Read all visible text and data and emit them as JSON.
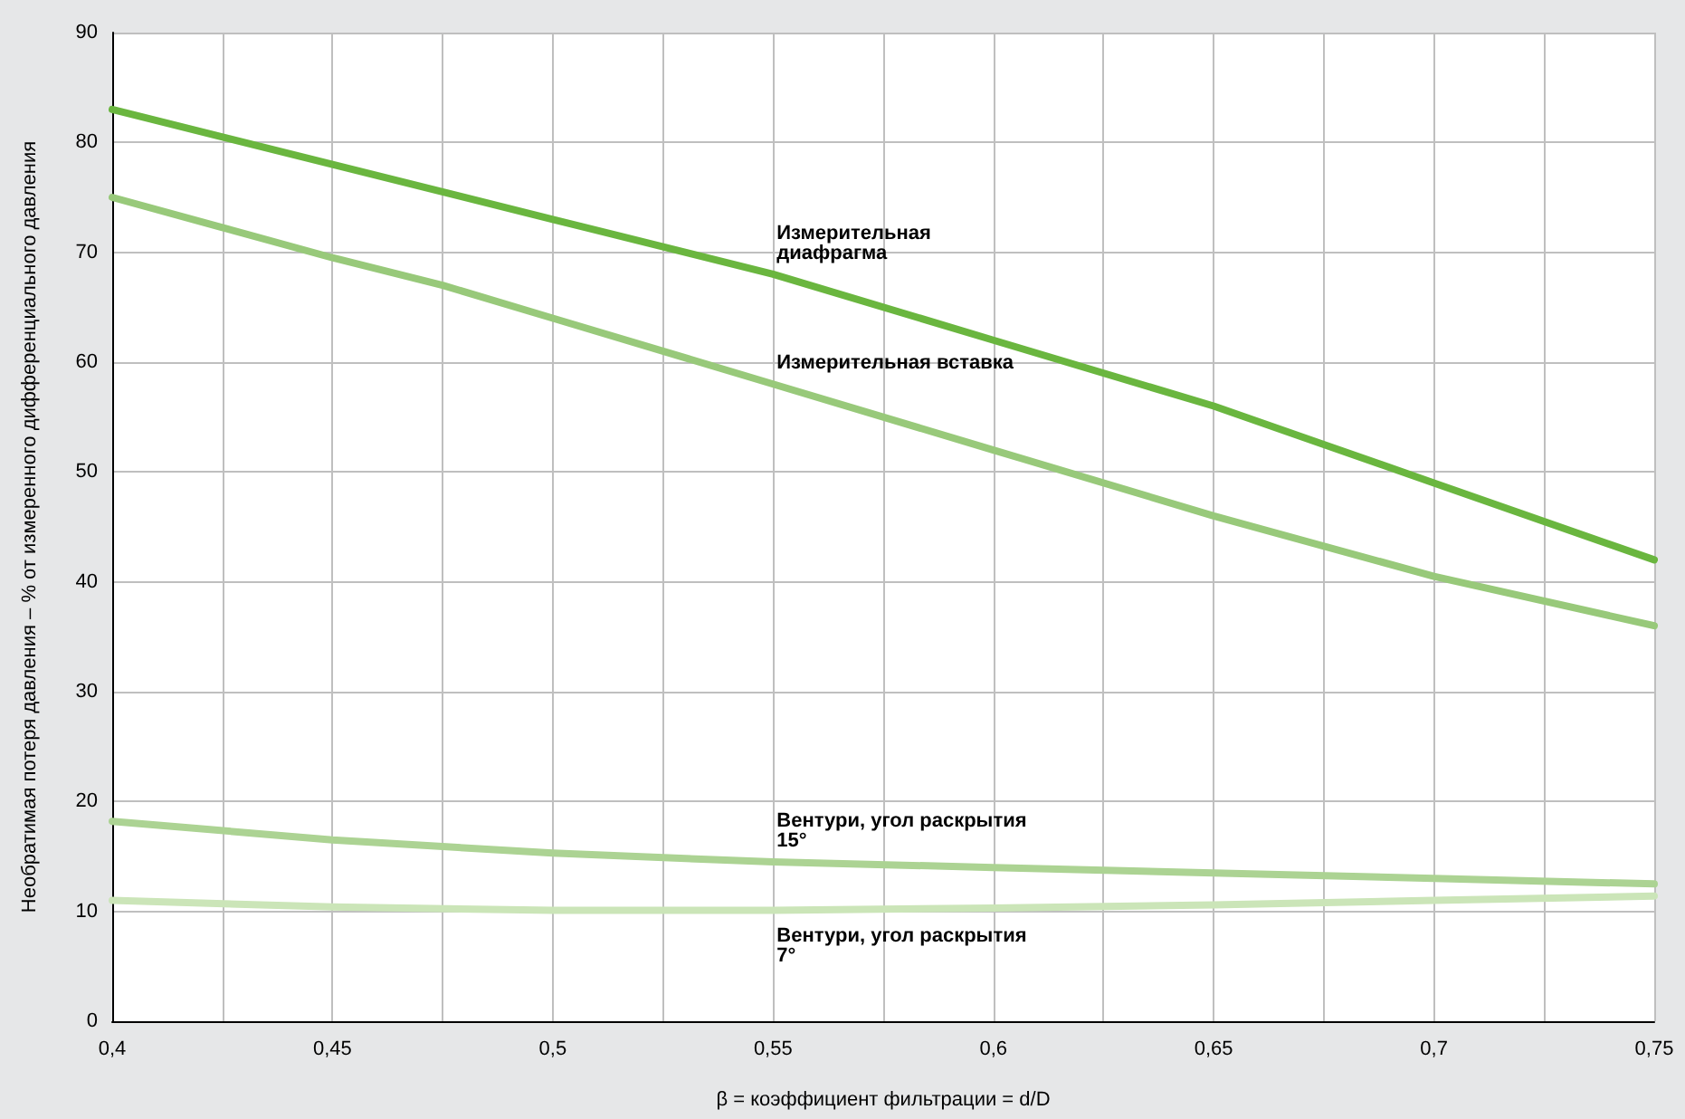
{
  "chart_data": {
    "type": "line",
    "xlabel": "β = коэффициент фильтрации = d/D",
    "ylabel": "Необратимая потеря давления – % от измеренного дифференциального давления",
    "xlim": [
      0.4,
      0.75
    ],
    "xticks": [
      {
        "value": 0.4,
        "label": "0,4"
      },
      {
        "value": 0.425,
        "label": null
      },
      {
        "value": 0.45,
        "label": "0,45"
      },
      {
        "value": 0.475,
        "label": null
      },
      {
        "value": 0.5,
        "label": "0,5"
      },
      {
        "value": 0.525,
        "label": null
      },
      {
        "value": 0.55,
        "label": "0,55"
      },
      {
        "value": 0.575,
        "label": null
      },
      {
        "value": 0.6,
        "label": "0,6"
      },
      {
        "value": 0.625,
        "label": null
      },
      {
        "value": 0.65,
        "label": "0,65"
      },
      {
        "value": 0.675,
        "label": null
      },
      {
        "value": 0.7,
        "label": "0,7"
      },
      {
        "value": 0.725,
        "label": null
      },
      {
        "value": 0.75,
        "label": "0,75"
      }
    ],
    "ylim": [
      0,
      90
    ],
    "yticks": [
      0,
      10,
      20,
      30,
      40,
      50,
      60,
      70,
      80,
      90
    ],
    "grid": true,
    "legend": false,
    "marker": "none",
    "line_style": "solid",
    "series": [
      {
        "name": "Измерительная диафрагма",
        "color": "#6ab63f",
        "x": [
          0.4,
          0.45,
          0.5,
          0.55,
          0.6,
          0.65,
          0.675,
          0.7,
          0.75
        ],
        "values": [
          83,
          78,
          73,
          68,
          62,
          56,
          52.5,
          49,
          42
        ]
      },
      {
        "name": "Измерительная вставка",
        "color": "#98c97a",
        "x": [
          0.4,
          0.45,
          0.475,
          0.5,
          0.55,
          0.6,
          0.65,
          0.7,
          0.75
        ],
        "values": [
          75,
          69.5,
          67,
          64,
          58,
          52,
          46,
          40.5,
          36
        ]
      },
      {
        "name": "Вентури, угол раскрытия 15°",
        "color": "#acd393",
        "x": [
          0.4,
          0.45,
          0.5,
          0.55,
          0.6,
          0.65,
          0.7,
          0.75
        ],
        "values": [
          18.2,
          16.5,
          15.3,
          14.5,
          14,
          13.5,
          13,
          12.5
        ]
      },
      {
        "name": "Вентури, угол раскрытия 7°",
        "color": "#cbe5b8",
        "x": [
          0.4,
          0.45,
          0.5,
          0.55,
          0.6,
          0.65,
          0.7,
          0.75
        ],
        "values": [
          11,
          10.4,
          10.1,
          10.1,
          10.3,
          10.6,
          11,
          11.4
        ]
      }
    ]
  }
}
